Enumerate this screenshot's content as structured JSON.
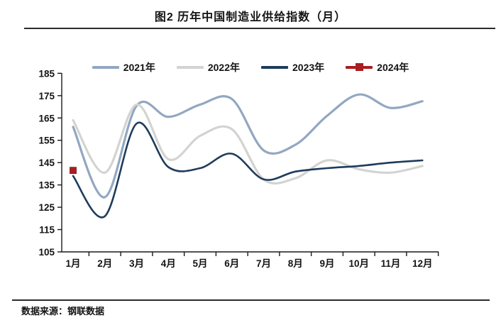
{
  "title": "图2 历年中国制造业供给指数（月）",
  "source": "数据来源：钢联数据",
  "chart_data": {
    "type": "line",
    "title": "图2 历年中国制造业供给指数（月）",
    "categories": [
      "1月",
      "2月",
      "3月",
      "4月",
      "5月",
      "6月",
      "7月",
      "8月",
      "9月",
      "10月",
      "11月",
      "12月"
    ],
    "series": [
      {
        "name": "2021年",
        "color": "#92A7C1",
        "width": 3.2,
        "marker": "none",
        "values": [
          161,
          129.5,
          170.5,
          165.5,
          171,
          173.5,
          150.5,
          153,
          166,
          175.5,
          169.5,
          172.5
        ]
      },
      {
        "name": "2022年",
        "color": "#D3D3D1",
        "width": 3.2,
        "marker": "none",
        "values": [
          164,
          140.5,
          171,
          146.5,
          157,
          160,
          137.5,
          138,
          146,
          142,
          140.5,
          143.5
        ]
      },
      {
        "name": "2023年",
        "color": "#1E3C5C",
        "width": 2.6,
        "marker": "none",
        "values": [
          139,
          121,
          162.5,
          143,
          142.5,
          149,
          137.5,
          141,
          142.5,
          143.5,
          145,
          146
        ]
      },
      {
        "name": "2024年",
        "color": "#A91E22",
        "width": 2.6,
        "marker": "square",
        "values": [
          141.5,
          null,
          null,
          null,
          null,
          null,
          null,
          null,
          null,
          null,
          null,
          null
        ]
      }
    ],
    "xlabel": "",
    "ylabel": "",
    "ylim": [
      105,
      185
    ],
    "ytick_step": 10,
    "grid": false,
    "legend_position": "top",
    "axis_color": "#1a1a1a"
  }
}
